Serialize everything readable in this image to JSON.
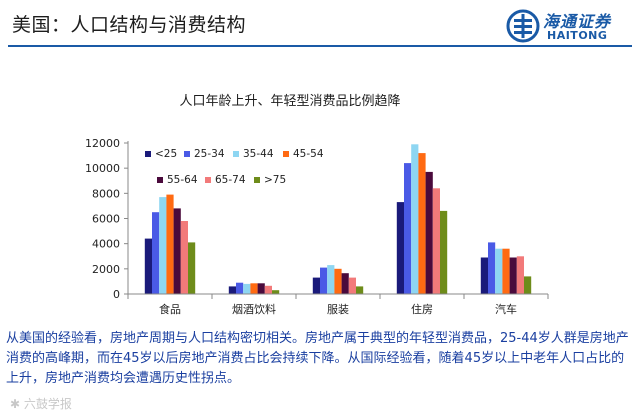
{
  "slide": {
    "title": "美国：人口结构与消费结构",
    "caption": "从美国的经验看，房地产周期与人口结构密切相关。房地产属于典型的年轻型消费品，25-44岁人群是房地产消费的高峰期，而在45岁以后房地产消费占比会持续下降。从国际经验看，随着45岁以上中老年人口占比的上升，房地产消费均会遭遇历史性拐点。",
    "watermark": "✱ 六鼓学报"
  },
  "logo": {
    "cn": "海通证券",
    "en": "HAITONG",
    "color": "#1a5aa6"
  },
  "chart_data": {
    "type": "bar",
    "title": "人口年龄上升、年轻型消费品比例趋降",
    "categories": [
      "食品",
      "烟酒饮料",
      "服装",
      "住房",
      "汽车"
    ],
    "yticks": [
      0,
      2000,
      4000,
      6000,
      8000,
      10000,
      12000
    ],
    "ylim": [
      0,
      12000
    ],
    "grid": false,
    "legend_position": "top-left",
    "series": [
      {
        "name": "<25",
        "color": "#1a1a7a",
        "values": [
          4400,
          600,
          1300,
          7300,
          2900
        ]
      },
      {
        "name": "25-34",
        "color": "#4a5ae6",
        "values": [
          6500,
          900,
          2100,
          10400,
          4100
        ]
      },
      {
        "name": "35-44",
        "color": "#8ed6f2",
        "values": [
          7700,
          800,
          2300,
          11900,
          3600
        ]
      },
      {
        "name": "45-54",
        "color": "#ff6a12",
        "values": [
          7900,
          850,
          2000,
          11200,
          3600
        ]
      },
      {
        "name": "55-64",
        "color": "#4a0a3c",
        "values": [
          6800,
          850,
          1650,
          9700,
          2900
        ]
      },
      {
        "name": "65-74",
        "color": "#f27a7a",
        "values": [
          5800,
          650,
          1300,
          8400,
          3000
        ]
      },
      {
        "name": ">75",
        "color": "#6e8c1a",
        "values": [
          4100,
          300,
          600,
          6600,
          1400
        ]
      }
    ]
  }
}
